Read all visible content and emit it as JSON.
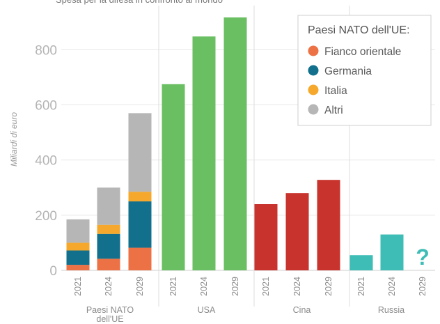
{
  "chart_data": {
    "type": "bar",
    "subtitle": "Spesa per la difesa in confronto al mondo",
    "ylabel": "Miliardi di euro",
    "ylim": [
      0,
      960
    ],
    "yticks": [
      0,
      200,
      400,
      600,
      800
    ],
    "years": [
      "2021",
      "2024",
      "2029"
    ],
    "groups": [
      {
        "name": "Paesi NATO\ndell'UE",
        "stacked": true,
        "bars": [
          {
            "year": "2021",
            "stack": [
              {
                "key": "fianco",
                "value": 20
              },
              {
                "key": "germania",
                "value": 52
              },
              {
                "key": "italia",
                "value": 28
              },
              {
                "key": "altri",
                "value": 85
              }
            ]
          },
          {
            "year": "2024",
            "stack": [
              {
                "key": "fianco",
                "value": 42
              },
              {
                "key": "germania",
                "value": 90
              },
              {
                "key": "italia",
                "value": 33
              },
              {
                "key": "altri",
                "value": 135
              }
            ]
          },
          {
            "year": "2029",
            "stack": [
              {
                "key": "fianco",
                "value": 82
              },
              {
                "key": "germania",
                "value": 168
              },
              {
                "key": "italia",
                "value": 35
              },
              {
                "key": "altri",
                "value": 285
              }
            ]
          }
        ]
      },
      {
        "name": "USA",
        "color": "#6bbf63",
        "bars": [
          {
            "year": "2021",
            "value": 675
          },
          {
            "year": "2024",
            "value": 848
          },
          {
            "year": "2029",
            "value": 917
          }
        ]
      },
      {
        "name": "Cina",
        "color": "#c8332e",
        "bars": [
          {
            "year": "2021",
            "value": 240
          },
          {
            "year": "2024",
            "value": 280
          },
          {
            "year": "2029",
            "value": 328
          }
        ]
      },
      {
        "name": "Russia",
        "color": "#3dbdb5",
        "bars": [
          {
            "year": "2021",
            "value": 55
          },
          {
            "year": "2024",
            "value": 130
          },
          {
            "year": "2029",
            "value": null,
            "label": "?"
          }
        ]
      }
    ],
    "legend": {
      "title": "Paesi NATO dell'UE:",
      "position": "top-right",
      "items": [
        {
          "key": "fianco",
          "label": "Fianco orientale",
          "color": "#ec7145"
        },
        {
          "key": "germania",
          "label": "Germania",
          "color": "#13708c"
        },
        {
          "key": "italia",
          "label": "Italia",
          "color": "#f5a82b"
        },
        {
          "key": "altri",
          "label": "Altri",
          "color": "#b6b6b6"
        }
      ]
    },
    "unknown_color": "#3dbdb5"
  }
}
